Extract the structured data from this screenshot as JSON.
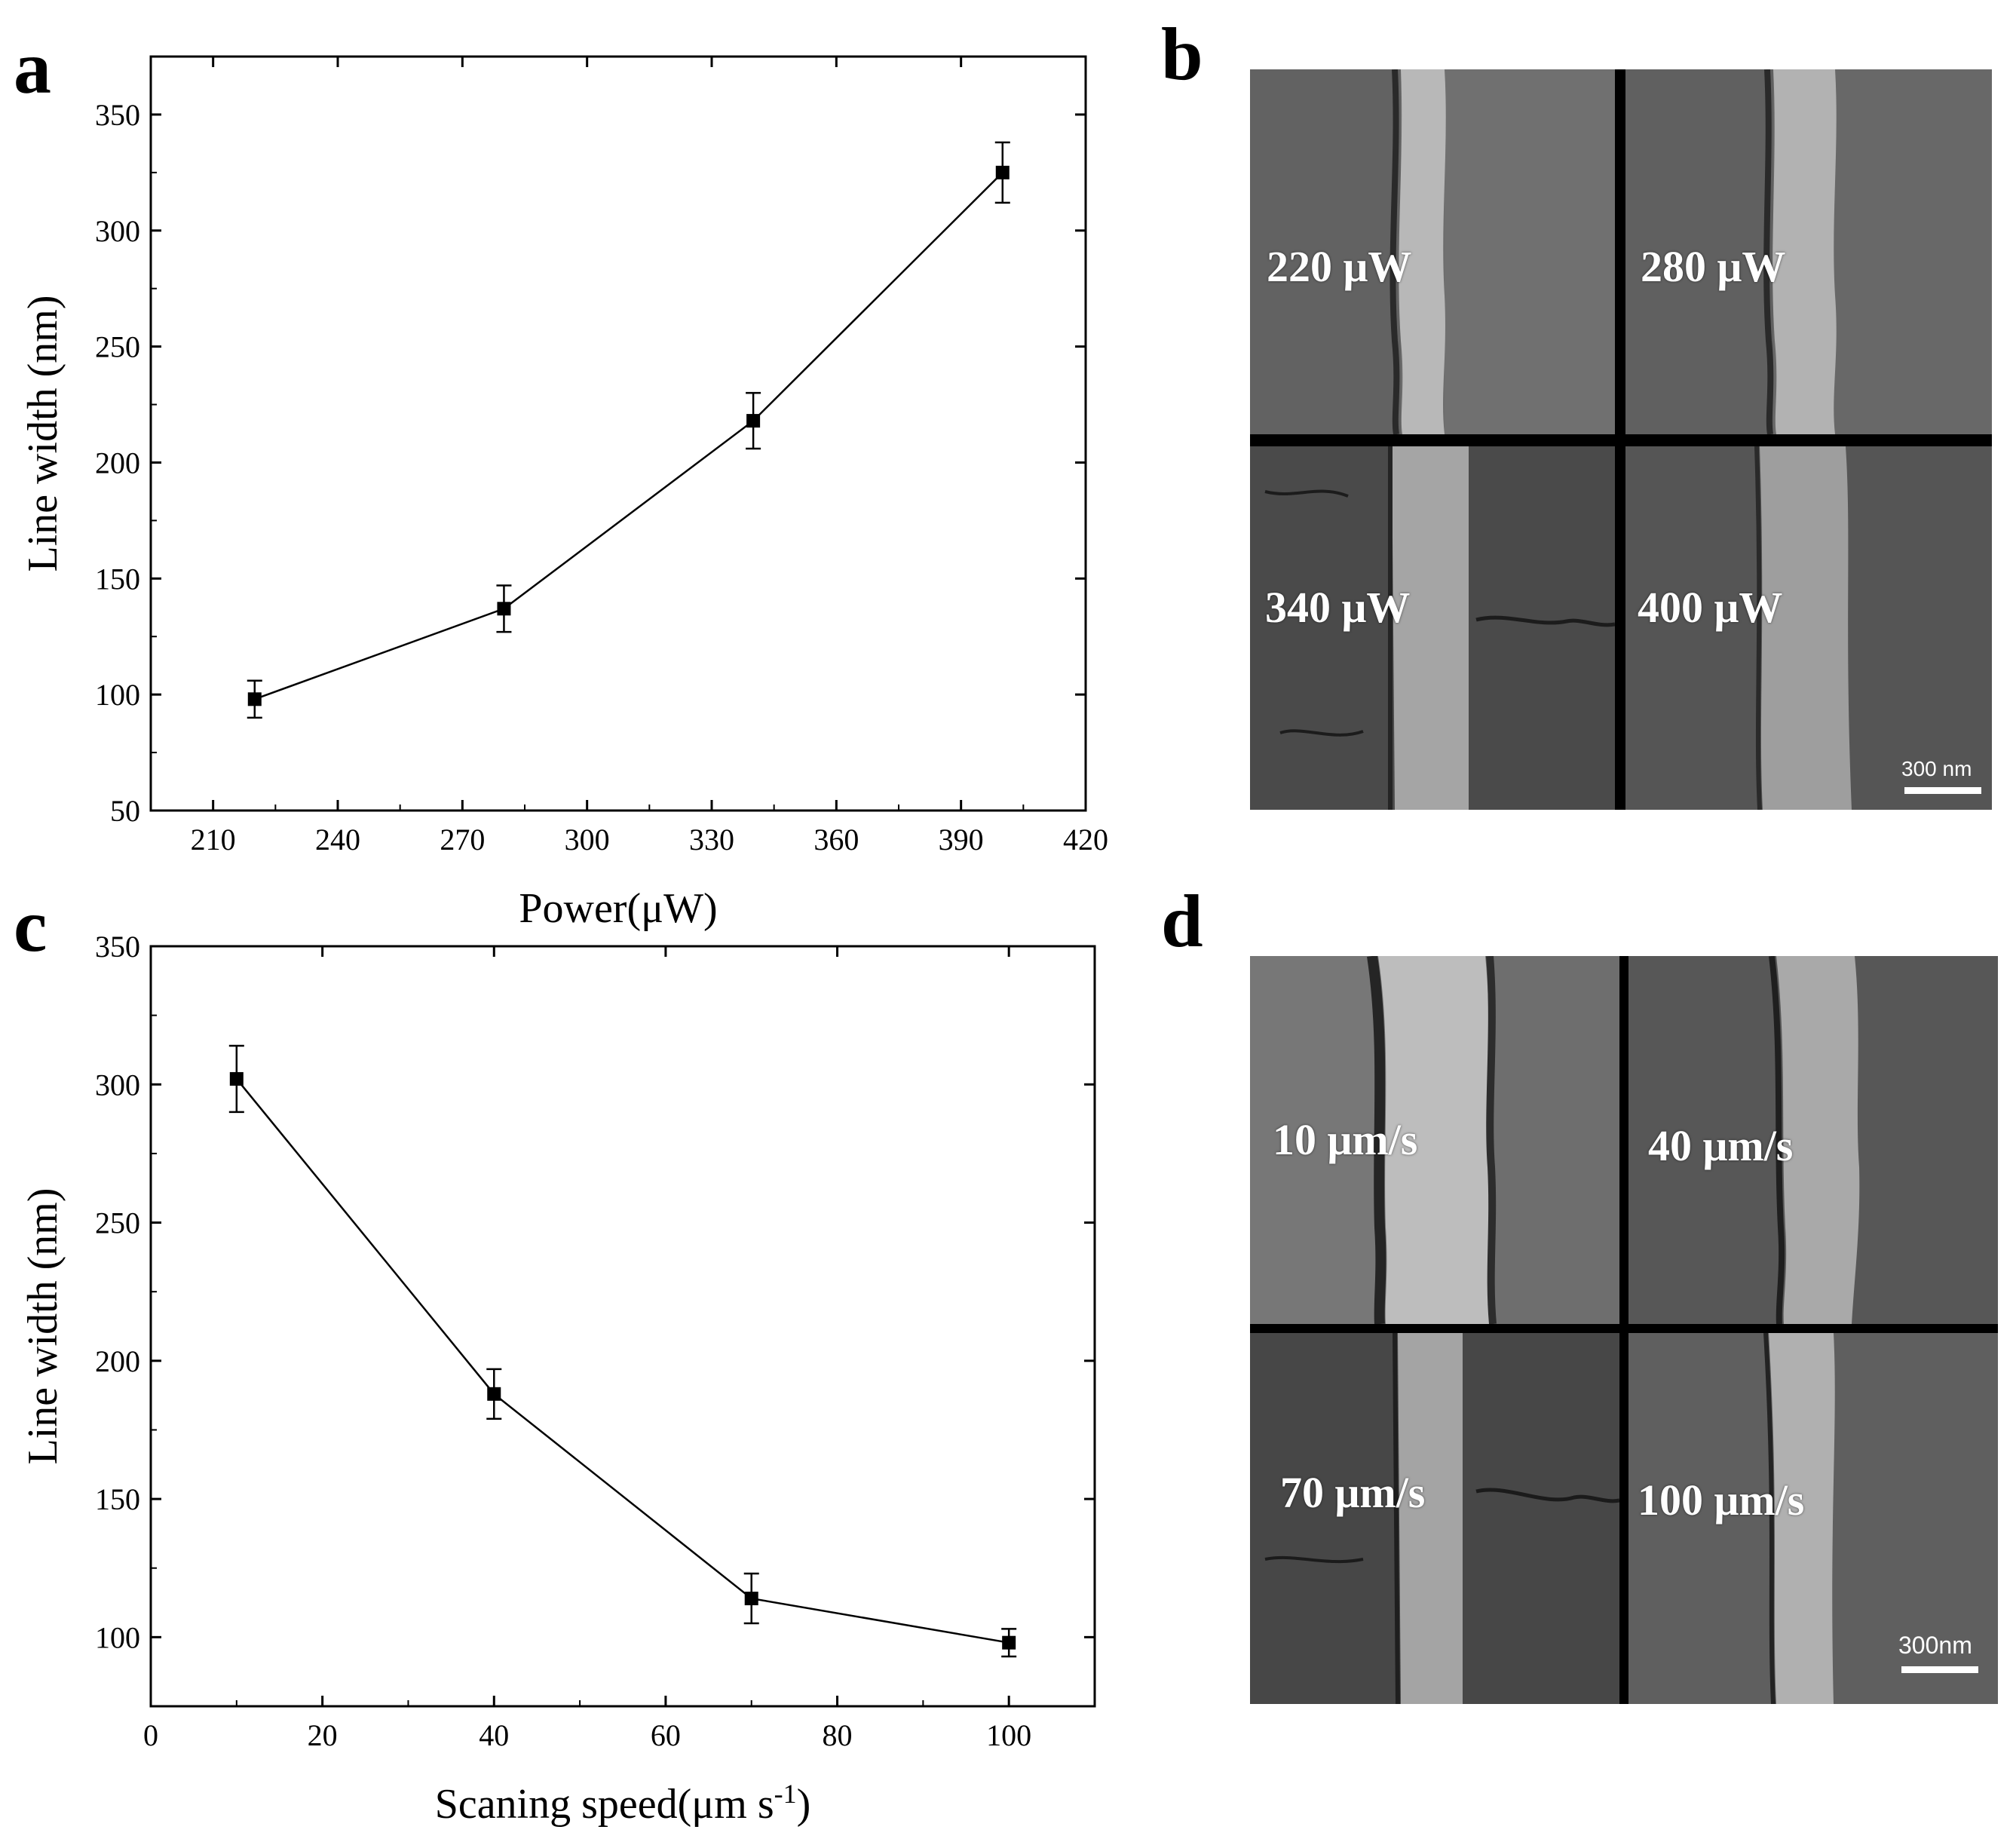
{
  "panels": {
    "a": "a",
    "b": "b",
    "c": "c",
    "d": "d"
  },
  "chart_data": [
    {
      "id": "a",
      "type": "line",
      "xlabel": "Power(μW)",
      "ylabel": "Line width (nm)",
      "xlim": [
        195,
        420
      ],
      "ylim": [
        50,
        375
      ],
      "xticks": [
        210,
        240,
        270,
        300,
        330,
        360,
        390,
        420
      ],
      "yticks": [
        50,
        100,
        150,
        200,
        250,
        300,
        350
      ],
      "grid": false,
      "series": [
        {
          "x": [
            220,
            280,
            340,
            400
          ],
          "y": [
            98,
            137,
            218,
            325
          ],
          "error": [
            8,
            10,
            12,
            13
          ],
          "marker": "square",
          "color": "#000000"
        }
      ]
    },
    {
      "id": "c",
      "type": "line",
      "xlabel": "Scaning speed(μm s",
      "xlabel_sup": "-1",
      "xlabel_suffix": ")",
      "ylabel": "Line width (nm)",
      "xlim": [
        0,
        110
      ],
      "ylim": [
        75,
        350
      ],
      "xticks": [
        0,
        20,
        40,
        60,
        80,
        100
      ],
      "yticks": [
        100,
        150,
        200,
        250,
        300,
        350
      ],
      "grid": false,
      "series": [
        {
          "x": [
            10,
            40,
            70,
            100
          ],
          "y": [
            302,
            188,
            114,
            98
          ],
          "error": [
            12,
            9,
            9,
            5
          ],
          "marker": "square",
          "color": "#000000"
        }
      ]
    }
  ],
  "sem_b": {
    "labels": [
      "220 μW",
      "280 μW",
      "340 μW",
      "400 μW"
    ],
    "scale": "300 nm"
  },
  "sem_d": {
    "labels": [
      "10 μm/s",
      "40 μm/s",
      "70 μm/s",
      "100 μm/s"
    ],
    "scale": "300nm"
  }
}
